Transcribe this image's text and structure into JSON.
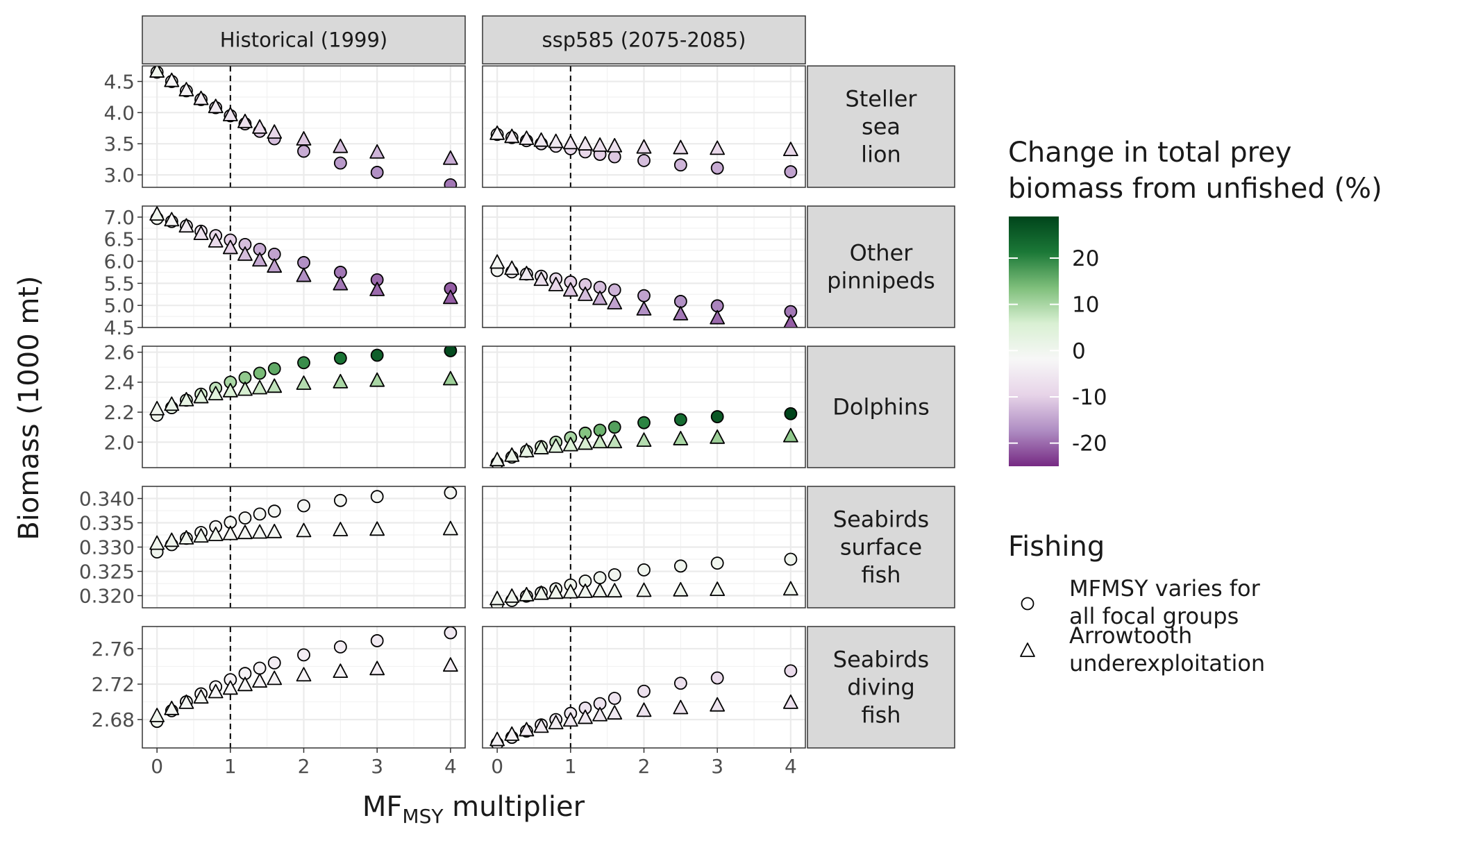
{
  "chart_data": {
    "type": "scatter",
    "title": "",
    "xlabel": "MF",
    "xlabel_sub": "MSY",
    "xlabel_tail": " multiplier",
    "ylabel": "Biomass (1000 mt)",
    "x": [
      0,
      0.2,
      0.4,
      0.6,
      0.8,
      1,
      1.2,
      1.4,
      1.6,
      2,
      2.5,
      3,
      4
    ],
    "x_ticks": [
      0,
      1,
      2,
      3,
      4
    ],
    "xlim": [
      -0.2,
      4.2
    ],
    "reference_line_x": 1,
    "columns": [
      "Historical (1999)",
      "ssp585 (2075-2085)"
    ],
    "rows": [
      {
        "label": [
          "Steller",
          "sea",
          "lion"
        ],
        "ylim": [
          2.8,
          4.75
        ],
        "y_ticks": [
          3.0,
          3.5,
          4.0,
          4.5
        ],
        "tick_labels": [
          "3.0",
          "3.5",
          "4.0",
          "4.5"
        ]
      },
      {
        "label": [
          "Other",
          "pinnipeds"
        ],
        "ylim": [
          4.5,
          7.25
        ],
        "y_ticks": [
          4.5,
          5.0,
          5.5,
          6.0,
          6.5,
          7.0
        ],
        "tick_labels": [
          "4.5",
          "5.0",
          "5.5",
          "6.0",
          "6.5",
          "7.0"
        ]
      },
      {
        "label": [
          "Dolphins"
        ],
        "ylim": [
          1.83,
          2.64
        ],
        "y_ticks": [
          2.0,
          2.2,
          2.4,
          2.6
        ],
        "tick_labels": [
          "2.0",
          "2.2",
          "2.4",
          "2.6"
        ]
      },
      {
        "label": [
          "Seabirds",
          "surface",
          "fish"
        ],
        "ylim": [
          0.3175,
          0.3425
        ],
        "y_ticks": [
          0.32,
          0.325,
          0.33,
          0.335,
          0.34
        ],
        "tick_labels": [
          "0.320",
          "0.325",
          "0.330",
          "0.335",
          "0.340"
        ]
      },
      {
        "label": [
          "Seabirds",
          "diving",
          "fish"
        ],
        "ylim": [
          2.648,
          2.785
        ],
        "y_ticks": [
          2.68,
          2.72,
          2.76
        ],
        "tick_labels": [
          "2.68",
          "2.72",
          "2.76"
        ]
      }
    ],
    "panels": [
      {
        "row": 0,
        "col": 0,
        "series": [
          {
            "name": "MFMSY varies for all focal groups",
            "y": [
              4.65,
              4.5,
              4.35,
              4.21,
              4.08,
              3.95,
              3.82,
              3.7,
              3.58,
              3.38,
              3.19,
              3.04,
              2.84
            ],
            "change": [
              0,
              -2,
              -3,
              -5,
              -6,
              -8,
              -9,
              -11,
              -12,
              -14,
              -16,
              -17,
              -19
            ]
          },
          {
            "name": "Arrowtooth underexploitation",
            "y": [
              4.66,
              4.51,
              4.36,
              4.22,
              4.09,
              3.96,
              3.85,
              3.76,
              3.68,
              3.57,
              3.45,
              3.36,
              3.26
            ],
            "change": [
              0,
              -2,
              -3,
              -4,
              -5,
              -6,
              -7,
              -8,
              -9,
              -11,
              -12,
              -13,
              -14
            ]
          }
        ]
      },
      {
        "row": 0,
        "col": 1,
        "series": [
          {
            "name": "MFMSY varies for all focal groups",
            "y": [
              3.65,
              3.6,
              3.55,
              3.5,
              3.46,
              3.42,
              3.37,
              3.33,
              3.29,
              3.23,
              3.16,
              3.11,
              3.05
            ],
            "change": [
              -3,
              -4,
              -5,
              -6,
              -7,
              -8,
              -9,
              -10,
              -11,
              -12,
              -13,
              -14,
              -15
            ]
          },
          {
            "name": "Arrowtooth underexploitation",
            "y": [
              3.66,
              3.61,
              3.58,
              3.55,
              3.53,
              3.51,
              3.49,
              3.47,
              3.46,
              3.44,
              3.43,
              3.42,
              3.4
            ],
            "change": [
              -3,
              -4,
              -4,
              -5,
              -5,
              -6,
              -6,
              -7,
              -7,
              -8,
              -8,
              -9,
              -9
            ]
          }
        ]
      },
      {
        "row": 1,
        "col": 0,
        "series": [
          {
            "name": "MFMSY varies for all focal groups",
            "y": [
              6.97,
              6.9,
              6.8,
              6.68,
              6.58,
              6.48,
              6.38,
              6.27,
              6.16,
              5.97,
              5.75,
              5.58,
              5.38
            ],
            "change": [
              0,
              -2,
              -4,
              -6,
              -8,
              -10,
              -12,
              -14,
              -15,
              -17,
              -19,
              -20,
              -21
            ]
          },
          {
            "name": "Arrowtooth underexploitation",
            "y": [
              7.06,
              6.93,
              6.79,
              6.62,
              6.45,
              6.3,
              6.15,
              6.02,
              5.88,
              5.67,
              5.48,
              5.35,
              5.17
            ],
            "change": [
              0,
              -2,
              -4,
              -6,
              -8,
              -10,
              -12,
              -14,
              -15,
              -17,
              -19,
              -20,
              -21
            ]
          }
        ]
      },
      {
        "row": 1,
        "col": 1,
        "series": [
          {
            "name": "MFMSY varies for all focal groups",
            "y": [
              5.79,
              5.76,
              5.71,
              5.66,
              5.6,
              5.53,
              5.47,
              5.41,
              5.35,
              5.22,
              5.09,
              4.99,
              4.86
            ],
            "change": [
              -1,
              -3,
              -5,
              -6,
              -8,
              -10,
              -11,
              -12,
              -13,
              -15,
              -17,
              -18,
              -19
            ]
          },
          {
            "name": "Arrowtooth underexploitation",
            "y": [
              5.97,
              5.83,
              5.71,
              5.58,
              5.46,
              5.34,
              5.24,
              5.15,
              5.05,
              4.91,
              4.8,
              4.71,
              4.61
            ],
            "change": [
              -1,
              -3,
              -5,
              -7,
              -9,
              -11,
              -12,
              -14,
              -15,
              -17,
              -19,
              -20,
              -21
            ]
          }
        ]
      },
      {
        "row": 2,
        "col": 0,
        "series": [
          {
            "name": "MFMSY varies for all focal groups",
            "y": [
              2.18,
              2.23,
              2.28,
              2.32,
              2.36,
              2.4,
              2.43,
              2.46,
              2.49,
              2.53,
              2.56,
              2.58,
              2.61
            ],
            "change": [
              0,
              2,
              4,
              6,
              8,
              10,
              12,
              14,
              16,
              19,
              22,
              25,
              28
            ]
          },
          {
            "name": "Arrowtooth underexploitation",
            "y": [
              2.22,
              2.25,
              2.28,
              2.3,
              2.32,
              2.34,
              2.35,
              2.36,
              2.37,
              2.39,
              2.4,
              2.41,
              2.42
            ],
            "change": [
              0,
              1,
              2,
              3,
              4,
              5,
              6,
              7,
              8,
              9,
              10,
              10,
              11
            ]
          }
        ]
      },
      {
        "row": 2,
        "col": 1,
        "series": [
          {
            "name": "MFMSY varies for all focal groups",
            "y": [
              1.86,
              1.9,
              1.94,
              1.97,
              2.0,
              2.03,
              2.06,
              2.08,
              2.1,
              2.13,
              2.15,
              2.17,
              2.19
            ],
            "change": [
              0,
              2,
              4,
              6,
              8,
              10,
              13,
              15,
              17,
              20,
              23,
              26,
              29
            ]
          },
          {
            "name": "Arrowtooth underexploitation",
            "y": [
              1.88,
              1.91,
              1.94,
              1.96,
              1.97,
              1.98,
              1.99,
              2.0,
              2.0,
              2.01,
              2.02,
              2.03,
              2.04
            ],
            "change": [
              0,
              1,
              2,
              3,
              4,
              5,
              6,
              7,
              8,
              9,
              10,
              11,
              12
            ]
          }
        ]
      },
      {
        "row": 3,
        "col": 0,
        "series": [
          {
            "name": "MFMSY varies for all focal groups",
            "y": [
              0.329,
              0.3305,
              0.3318,
              0.333,
              0.3342,
              0.3351,
              0.336,
              0.3368,
              0.3374,
              0.3385,
              0.3396,
              0.3404,
              0.3412
            ],
            "change": [
              0,
              0,
              0,
              -1,
              -1,
              -1,
              -1,
              -1,
              -1,
              -1,
              -1,
              -1,
              -1
            ]
          },
          {
            "name": "Arrowtooth underexploitation",
            "y": [
              0.3307,
              0.3313,
              0.3318,
              0.3322,
              0.3325,
              0.3327,
              0.3329,
              0.333,
              0.3331,
              0.3333,
              0.3335,
              0.3336,
              0.3337
            ],
            "change": [
              0,
              0,
              0,
              0,
              0,
              -1,
              -1,
              -1,
              -1,
              -1,
              -1,
              -1,
              -1
            ]
          }
        ]
      },
      {
        "row": 3,
        "col": 1,
        "series": [
          {
            "name": "MFMSY varies for all focal groups",
            "y": [
              0.3182,
              0.319,
              0.3199,
              0.3206,
              0.3214,
              0.3222,
              0.323,
              0.3237,
              0.3243,
              0.3253,
              0.3261,
              0.3267,
              0.3275
            ],
            "change": [
              0,
              0,
              0,
              0,
              0,
              0,
              0,
              0,
              0,
              0,
              0,
              0,
              0
            ]
          },
          {
            "name": "Arrowtooth underexploitation",
            "y": [
              0.3193,
              0.3198,
              0.3201,
              0.3204,
              0.3206,
              0.3207,
              0.3208,
              0.3209,
              0.3209,
              0.321,
              0.3211,
              0.3212,
              0.3213
            ],
            "change": [
              0,
              0,
              0,
              0,
              0,
              0,
              0,
              0,
              0,
              0,
              0,
              0,
              0
            ]
          }
        ]
      },
      {
        "row": 4,
        "col": 0,
        "series": [
          {
            "name": "MFMSY varies for all focal groups",
            "y": [
              2.678,
              2.69,
              2.7,
              2.709,
              2.717,
              2.725,
              2.732,
              2.738,
              2.744,
              2.753,
              2.762,
              2.769,
              2.778
            ],
            "change": [
              0,
              -1,
              -1,
              -2,
              -2,
              -3,
              -3,
              -3,
              -4,
              -4,
              -4,
              -5,
              -5
            ]
          },
          {
            "name": "Arrowtooth underexploitation",
            "y": [
              2.684,
              2.692,
              2.699,
              2.705,
              2.711,
              2.715,
              2.719,
              2.723,
              2.726,
              2.73,
              2.734,
              2.737,
              2.741
            ],
            "change": [
              0,
              -1,
              -1,
              -1,
              -2,
              -2,
              -2,
              -3,
              -3,
              -3,
              -3,
              -4,
              -4
            ]
          }
        ]
      },
      {
        "row": 4,
        "col": 1,
        "series": [
          {
            "name": "MFMSY varies for all focal groups",
            "y": [
              2.653,
              2.66,
              2.667,
              2.674,
              2.68,
              2.687,
              2.693,
              2.698,
              2.704,
              2.712,
              2.721,
              2.727,
              2.735
            ],
            "change": [
              -3,
              -3,
              -4,
              -4,
              -5,
              -5,
              -6,
              -6,
              -6,
              -7,
              -7,
              -8,
              -8
            ]
          },
          {
            "name": "Arrowtooth underexploitation",
            "y": [
              2.657,
              2.663,
              2.668,
              2.672,
              2.676,
              2.679,
              2.682,
              2.685,
              2.687,
              2.69,
              2.693,
              2.696,
              2.699
            ],
            "change": [
              -3,
              -3,
              -4,
              -4,
              -4,
              -5,
              -5,
              -5,
              -5,
              -6,
              -6,
              -6,
              -7
            ]
          }
        ]
      }
    ],
    "colorbar": {
      "title": [
        "Change in total prey",
        "biomass from unfished (%)"
      ],
      "range": [
        -25,
        29
      ],
      "ticks": [
        20,
        10,
        0,
        -10,
        -20
      ],
      "tick_labels": [
        "20",
        "10",
        "0",
        "-10",
        "-20"
      ],
      "colors": [
        "#762a83",
        "#af8dc3",
        "#e7d4e8",
        "#f7f7f7",
        "#d9f0d3",
        "#7fbf7b",
        "#1b7837",
        "#00441b"
      ]
    },
    "legend": {
      "title": "Fishing",
      "items": [
        {
          "shape": "circle",
          "label": [
            "MFMSY varies for",
            "all focal groups"
          ]
        },
        {
          "shape": "triangle",
          "label": [
            "Arrowtooth",
            "underexploitation"
          ]
        }
      ]
    }
  }
}
